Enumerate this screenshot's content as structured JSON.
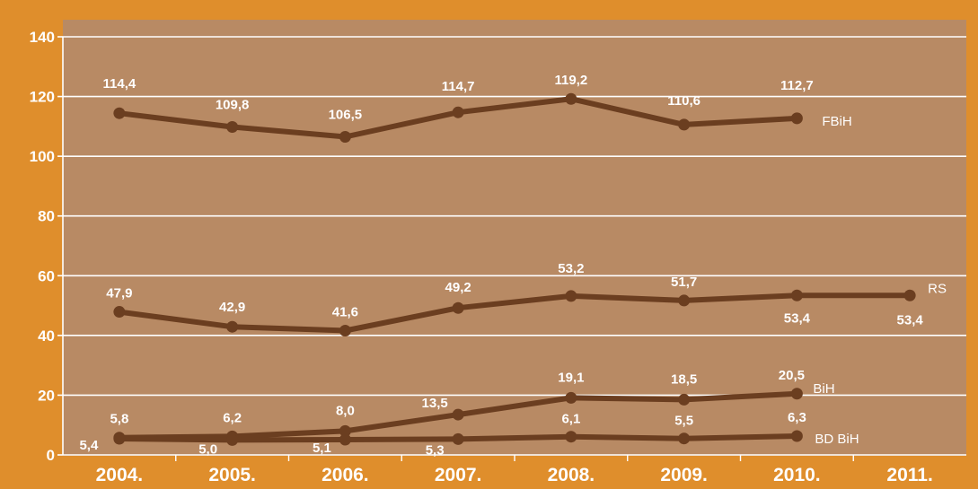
{
  "chart_data": {
    "type": "line",
    "title": "",
    "xlabel": "",
    "ylabel": "",
    "categories": [
      "2004.",
      "2005.",
      "2006.",
      "2007.",
      "2008.",
      "2009.",
      "2010.",
      "2011."
    ],
    "ylim": [
      0,
      140
    ],
    "yticks": [
      "0",
      "20",
      "40",
      "60",
      "80",
      "100",
      "120",
      "140"
    ],
    "grid": true,
    "legend": "none (series names shown at line ends)",
    "series": [
      {
        "name": "FBiH",
        "values": [
          114.4,
          109.8,
          106.5,
          114.7,
          119.2,
          110.6,
          112.7,
          null
        ],
        "labels": [
          "114,4",
          "109,8",
          "106,5",
          "114,7",
          "119,2",
          "110,6",
          "112,7",
          null
        ]
      },
      {
        "name": "RS",
        "values": [
          47.9,
          42.9,
          41.6,
          49.2,
          53.2,
          51.7,
          53.4,
          53.4
        ],
        "labels": [
          "47,9",
          "42,9",
          "41,6",
          "49,2",
          "53,2",
          "51,7",
          "53,4",
          "53,4"
        ]
      },
      {
        "name": "BiH",
        "values": [
          5.8,
          6.2,
          8.0,
          13.5,
          19.1,
          18.5,
          20.5,
          null
        ],
        "labels": [
          "5,8",
          "6,2",
          "8,0",
          "13,5",
          "19,1",
          "18,5",
          "20,5",
          null
        ]
      },
      {
        "name": "BD BiH",
        "values": [
          5.4,
          5.0,
          5.1,
          5.3,
          6.1,
          5.5,
          6.3,
          null
        ],
        "labels": [
          "5,4",
          "5,0",
          "5,1",
          "5,3",
          "6,1",
          "5,5",
          "6,3",
          null
        ]
      }
    ],
    "colors": {
      "frame": "#df8e2c",
      "plot_background": "#b88a64",
      "line": "#6b3e20",
      "gridline": "#ffffff",
      "text": "#ffffff"
    }
  }
}
